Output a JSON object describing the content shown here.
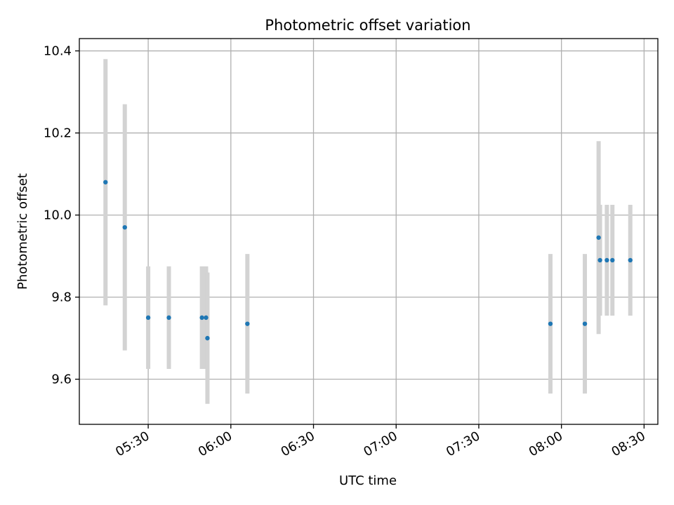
{
  "chart_data": {
    "type": "scatter",
    "title": "Photometric offset variation",
    "xlabel": "UTC time",
    "ylabel": "Photometric offset",
    "xlim": [
      "05:05",
      "08:35"
    ],
    "ylim": [
      9.49,
      10.43
    ],
    "grid": true,
    "x_ticks": [
      "05:30",
      "06:00",
      "06:30",
      "07:00",
      "07:30",
      "08:00",
      "08:30"
    ],
    "y_ticks": [
      "9.6",
      "9.8",
      "10.0",
      "10.2",
      "10.4"
    ],
    "y_tick_values": [
      9.6,
      9.8,
      10.0,
      10.2,
      10.4
    ],
    "colors": {
      "points": "#1f77b4",
      "error_bars": "#d3d3d3",
      "grid": "#b0b0b0"
    },
    "series": [
      {
        "x": [
          "05:14:30",
          "05:21:30",
          "05:30:00",
          "05:37:30",
          "05:49:30",
          "05:51:00",
          "05:51:30",
          "06:06:00",
          "07:56:00",
          "08:08:30",
          "08:13:30",
          "08:14:00",
          "08:16:30",
          "08:18:30",
          "08:25:00"
        ],
        "y": [
          10.08,
          9.97,
          9.75,
          9.75,
          9.75,
          9.75,
          9.7,
          9.735,
          9.735,
          9.735,
          9.945,
          9.89,
          9.89,
          9.89,
          9.89
        ],
        "yerr": [
          0.3,
          0.3,
          0.125,
          0.125,
          0.125,
          0.125,
          0.16,
          0.17,
          0.17,
          0.17,
          0.235,
          0.135,
          0.135,
          0.135,
          0.135
        ]
      }
    ]
  }
}
